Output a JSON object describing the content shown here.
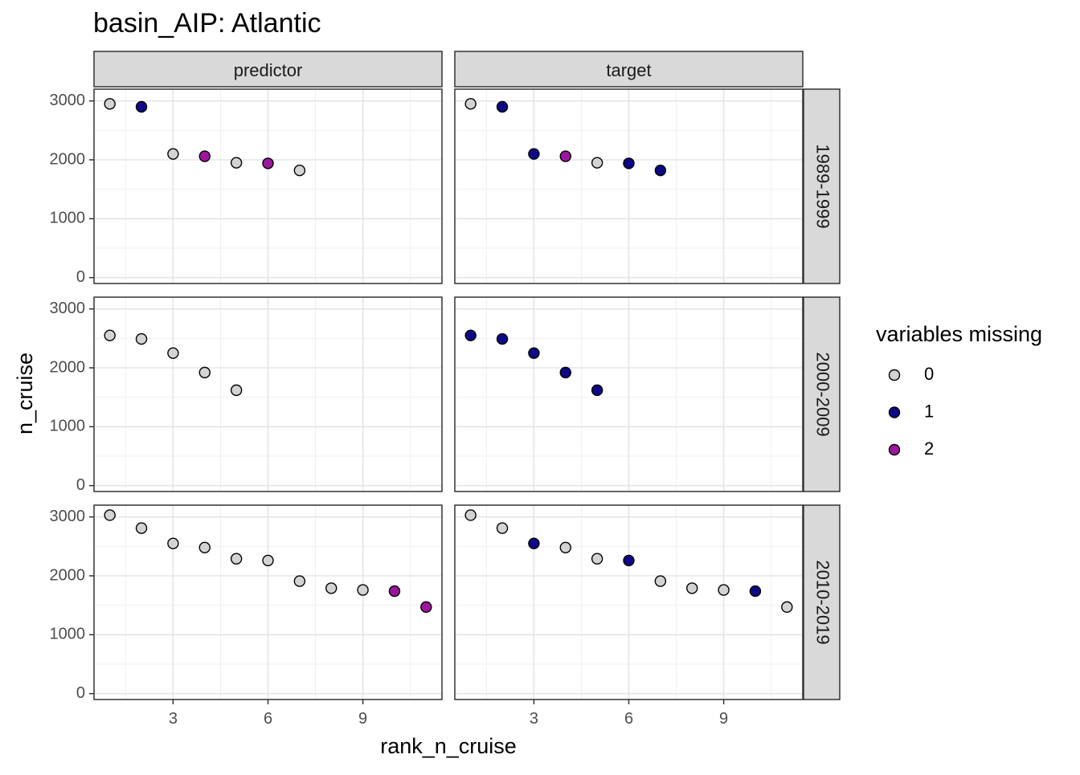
{
  "chart_data": {
    "type": "scatter",
    "title": "basin_AIP: Atlantic",
    "xlabel": "rank_n_cruise",
    "ylabel": "n_cruise",
    "xlim": [
      0.5,
      11.5
    ],
    "ylim": [
      -100,
      3200
    ],
    "x_ticks": [
      3,
      6,
      9
    ],
    "y_ticks": [
      0,
      1000,
      2000,
      3000
    ],
    "grid": true,
    "facet_columns": [
      "predictor",
      "target"
    ],
    "facet_rows": [
      "1989-1999",
      "2000-2009",
      "2010-2019"
    ],
    "legend": {
      "title": "variables missing",
      "position": "right",
      "items": [
        {
          "label": "0",
          "color": "#d3d3d3"
        },
        {
          "label": "1",
          "color": "#0d0887"
        },
        {
          "label": "2",
          "color": "#9c179e"
        }
      ]
    },
    "panels": [
      {
        "column": "predictor",
        "row": "1989-1999",
        "points": [
          [
            1,
            2950,
            0
          ],
          [
            2,
            2900,
            1
          ],
          [
            3,
            2100,
            0
          ],
          [
            4,
            2060,
            2
          ],
          [
            5,
            1950,
            0
          ],
          [
            6,
            1940,
            2
          ],
          [
            7,
            1820,
            0
          ]
        ]
      },
      {
        "column": "target",
        "row": "1989-1999",
        "points": [
          [
            1,
            2950,
            0
          ],
          [
            2,
            2900,
            1
          ],
          [
            3,
            2100,
            1
          ],
          [
            4,
            2060,
            2
          ],
          [
            5,
            1950,
            0
          ],
          [
            6,
            1940,
            1
          ],
          [
            7,
            1820,
            1
          ]
        ]
      },
      {
        "column": "predictor",
        "row": "2000-2009",
        "points": [
          [
            1,
            2550,
            0
          ],
          [
            2,
            2490,
            0
          ],
          [
            3,
            2250,
            0
          ],
          [
            4,
            1920,
            0
          ],
          [
            5,
            1620,
            0
          ]
        ]
      },
      {
        "column": "target",
        "row": "2000-2009",
        "points": [
          [
            1,
            2550,
            1
          ],
          [
            2,
            2490,
            1
          ],
          [
            3,
            2250,
            1
          ],
          [
            4,
            1920,
            1
          ],
          [
            5,
            1620,
            1
          ]
        ]
      },
      {
        "column": "predictor",
        "row": "2010-2019",
        "points": [
          [
            1,
            3030,
            0
          ],
          [
            2,
            2810,
            0
          ],
          [
            3,
            2550,
            0
          ],
          [
            4,
            2480,
            0
          ],
          [
            5,
            2290,
            0
          ],
          [
            6,
            2260,
            0
          ],
          [
            7,
            1910,
            0
          ],
          [
            8,
            1790,
            0
          ],
          [
            9,
            1760,
            0
          ],
          [
            10,
            1740,
            2
          ],
          [
            11,
            1470,
            2
          ]
        ]
      },
      {
        "column": "target",
        "row": "2010-2019",
        "points": [
          [
            1,
            3030,
            0
          ],
          [
            2,
            2810,
            0
          ],
          [
            3,
            2550,
            1
          ],
          [
            4,
            2480,
            0
          ],
          [
            5,
            2290,
            0
          ],
          [
            6,
            2260,
            1
          ],
          [
            7,
            1910,
            0
          ],
          [
            8,
            1790,
            0
          ],
          [
            9,
            1760,
            0
          ],
          [
            10,
            1740,
            1
          ],
          [
            11,
            1470,
            0
          ]
        ]
      }
    ]
  }
}
